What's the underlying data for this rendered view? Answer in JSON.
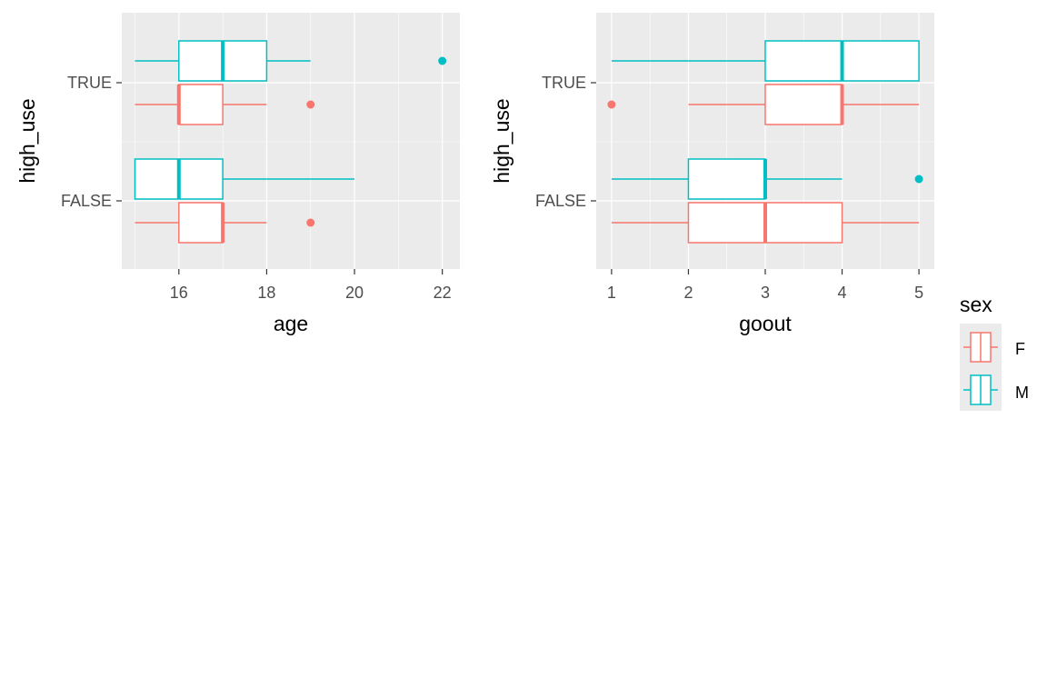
{
  "chart_data": [
    {
      "type": "boxplot",
      "orientation": "horizontal",
      "xlabel": "age",
      "ylabel": "high_use",
      "xlim": [
        14.7,
        22.4
      ],
      "xticks": [
        16,
        18,
        20,
        22
      ],
      "xtick_labels": [
        "16",
        "18",
        "20",
        "22"
      ],
      "categories": [
        "FALSE",
        "TRUE"
      ],
      "grid": true,
      "series": [
        {
          "name": "F",
          "color": "#F8766D",
          "boxes": [
            {
              "category": "FALSE",
              "whisker_low": 15,
              "q1": 16,
              "median": 17,
              "q3": 17,
              "whisker_high": 18,
              "outliers": [
                19
              ]
            },
            {
              "category": "TRUE",
              "whisker_low": 15,
              "q1": 16,
              "median": 16,
              "q3": 17,
              "whisker_high": 18,
              "outliers": [
                19
              ]
            }
          ]
        },
        {
          "name": "M",
          "color": "#00BFC4",
          "boxes": [
            {
              "category": "FALSE",
              "whisker_low": 15,
              "q1": 15,
              "median": 16,
              "q3": 17,
              "whisker_high": 20,
              "outliers": []
            },
            {
              "category": "TRUE",
              "whisker_low": 15,
              "q1": 16,
              "median": 17,
              "q3": 18,
              "whisker_high": 19,
              "outliers": [
                22
              ]
            }
          ]
        }
      ]
    },
    {
      "type": "boxplot",
      "orientation": "horizontal",
      "xlabel": "goout",
      "ylabel": "high_use",
      "xlim": [
        0.8,
        5.2
      ],
      "xticks": [
        1,
        2,
        3,
        4,
        5
      ],
      "xtick_labels": [
        "1",
        "2",
        "3",
        "4",
        "5"
      ],
      "categories": [
        "FALSE",
        "TRUE"
      ],
      "grid": true,
      "series": [
        {
          "name": "F",
          "color": "#F8766D",
          "boxes": [
            {
              "category": "FALSE",
              "whisker_low": 1,
              "q1": 2,
              "median": 3,
              "q3": 4,
              "whisker_high": 5,
              "outliers": []
            },
            {
              "category": "TRUE",
              "whisker_low": 2,
              "q1": 3,
              "median": 4,
              "q3": 4,
              "whisker_high": 5,
              "outliers": [
                1
              ]
            }
          ]
        },
        {
          "name": "M",
          "color": "#00BFC4",
          "boxes": [
            {
              "category": "FALSE",
              "whisker_low": 1,
              "q1": 2,
              "median": 3,
              "q3": 3,
              "whisker_high": 4,
              "outliers": [
                5
              ]
            },
            {
              "category": "TRUE",
              "whisker_low": 1,
              "q1": 3,
              "median": 4,
              "q3": 5,
              "whisker_high": 5,
              "outliers": []
            }
          ]
        }
      ]
    }
  ],
  "legend": {
    "title": "sex",
    "placement": "right",
    "entries": [
      {
        "label": "F",
        "color": "#F8766D"
      },
      {
        "label": "M",
        "color": "#00BFC4"
      }
    ]
  }
}
